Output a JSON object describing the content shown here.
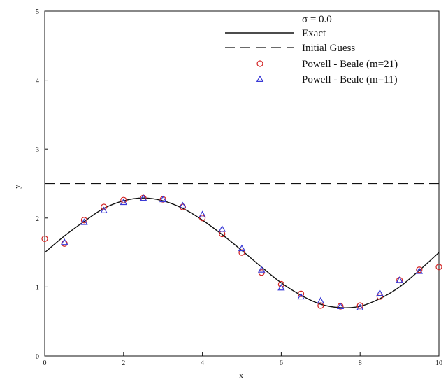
{
  "chart_data": {
    "type": "line",
    "title": "",
    "xlabel": "x",
    "ylabel": "y",
    "xlim": [
      0,
      10
    ],
    "ylim": [
      0,
      5
    ],
    "x_ticks": [
      0,
      2,
      4,
      6,
      8,
      10
    ],
    "y_ticks": [
      0,
      1,
      2,
      3,
      4,
      5
    ],
    "grid": false,
    "legend_position": "top-right",
    "legend_header": "σ = 0.0",
    "series": [
      {
        "name": "Exact",
        "style": "solid-line",
        "color": "#111111",
        "x": [
          0,
          0.5,
          1,
          1.5,
          2,
          2.5,
          3,
          3.5,
          4,
          4.5,
          5,
          5.5,
          6,
          6.5,
          7,
          7.5,
          8,
          8.5,
          9,
          9.5,
          10
        ],
        "y": [
          1.5,
          1.74,
          1.95,
          2.14,
          2.25,
          2.29,
          2.25,
          2.14,
          1.97,
          1.76,
          1.53,
          1.29,
          1.06,
          0.88,
          0.75,
          0.7,
          0.72,
          0.83,
          1.0,
          1.24,
          1.5
        ]
      },
      {
        "name": "Initial Guess",
        "style": "dashed-line",
        "color": "#111111",
        "x": [
          0,
          10
        ],
        "y": [
          2.5,
          2.5
        ]
      },
      {
        "name": "Powell - Beale  (m=21)",
        "style": "circle-marker",
        "color": "#d22323",
        "x": [
          0,
          0.5,
          1,
          1.5,
          2,
          2.5,
          3,
          3.5,
          4,
          4.5,
          5,
          5.5,
          6,
          6.5,
          7,
          7.5,
          8,
          8.5,
          9,
          9.5,
          10
        ],
        "y": [
          1.7,
          1.63,
          1.97,
          2.16,
          2.26,
          2.29,
          2.27,
          2.16,
          2.0,
          1.77,
          1.5,
          1.21,
          1.04,
          0.9,
          0.73,
          0.72,
          0.73,
          0.86,
          1.1,
          1.25,
          1.29
        ]
      },
      {
        "name": "Powell - Beale  (m=11)",
        "style": "triangle-marker",
        "color": "#3a3ad6",
        "x": [
          0.5,
          1,
          1.5,
          2,
          2.5,
          3,
          3.5,
          4,
          4.5,
          5,
          5.5,
          6,
          6.5,
          7,
          7.5,
          8,
          8.5,
          9,
          9.5
        ],
        "y": [
          1.65,
          1.94,
          2.11,
          2.23,
          2.29,
          2.27,
          2.18,
          2.05,
          1.84,
          1.56,
          1.25,
          0.99,
          0.86,
          0.8,
          0.72,
          0.7,
          0.91,
          1.1,
          1.23
        ]
      }
    ]
  }
}
